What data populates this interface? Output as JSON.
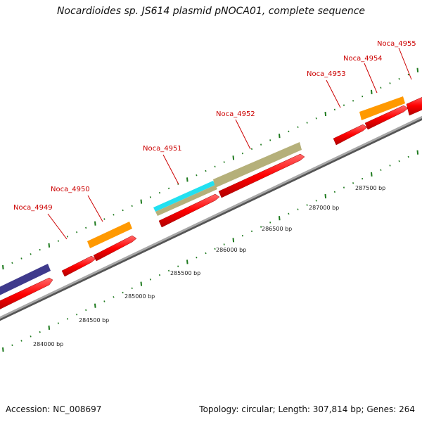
{
  "title": "Nocardioides sp. JS614 plasmid pNOCA01, complete sequence",
  "footer": {
    "accession": "Accession: NC_008697",
    "summary": "Topology: circular; Length: 307,814 bp; Genes: 264"
  },
  "colors": {
    "background": "#ffffff",
    "backbone": "#8a8a8a",
    "cds_red": "#ff0000",
    "cds_orange": "#ff9900",
    "cds_purple": "#3f3a8c",
    "cds_cyan": "#22e0f0",
    "cds_khaki": "#b5b07a",
    "tick_green": "#1e7a1e",
    "label_red": "#cc0000"
  },
  "genes": [
    {
      "name": "Noca_4949"
    },
    {
      "name": "Noca_4950"
    },
    {
      "name": "Noca_4951"
    },
    {
      "name": "Noca_4952"
    },
    {
      "name": "Noca_4953"
    },
    {
      "name": "Noca_4954"
    },
    {
      "name": "Noca_4955"
    }
  ],
  "bp_labels": [
    "284000 bp",
    "284500 bp",
    "285000 bp",
    "285500 bp",
    "286000 bp",
    "286500 bp",
    "287000 bp",
    "287500 bp"
  ]
}
